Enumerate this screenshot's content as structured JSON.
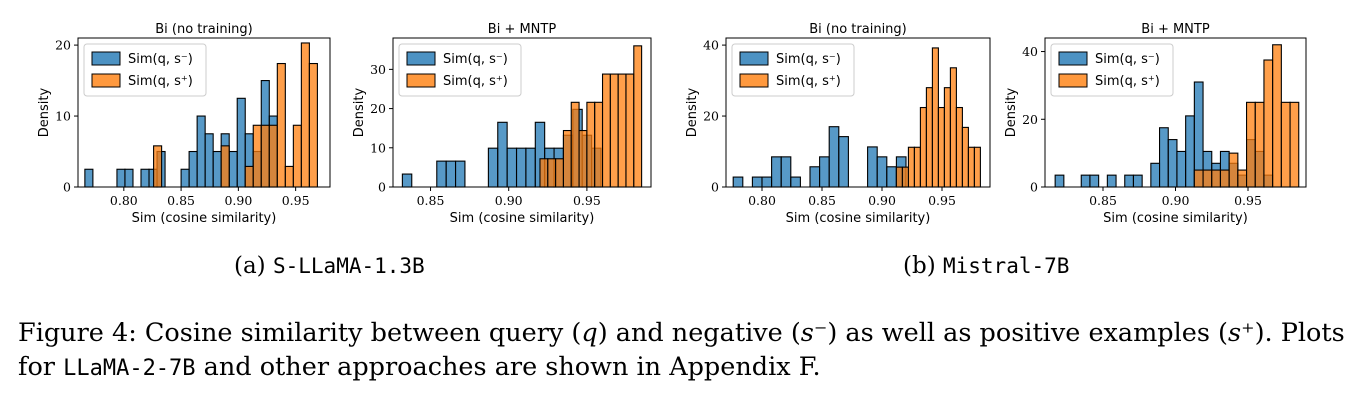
{
  "colors": {
    "neg": "#1f77b4",
    "pos": "#ff7f0e"
  },
  "legend": {
    "neg": "Sim(q, s⁻)",
    "pos": "Sim(q, s⁺)"
  },
  "chart_data": [
    {
      "type": "bar",
      "title": "Bi (no training)",
      "xlabel": "Sim (cosine similarity)",
      "ylabel": "Density",
      "xlim": [
        0.76,
        0.98
      ],
      "ylim": [
        0,
        21
      ],
      "xticks": [
        "0.80",
        "0.85",
        "0.90",
        "0.95"
      ],
      "yticks": [
        "0",
        "10",
        "20"
      ],
      "legend_position": "top-left",
      "series": [
        {
          "name": "Sim(q, s⁻)",
          "bins": [
            [
              0.766,
              0.773,
              2.5
            ],
            [
              0.794,
              0.801,
              2.5
            ],
            [
              0.801,
              0.808,
              2.5
            ],
            [
              0.815,
              0.822,
              2.5
            ],
            [
              0.822,
              0.829,
              2.5
            ],
            [
              0.829,
              0.836,
              5.0
            ],
            [
              0.85,
              0.857,
              2.5
            ],
            [
              0.857,
              0.864,
              5.0
            ],
            [
              0.864,
              0.871,
              10.0
            ],
            [
              0.871,
              0.878,
              7.5
            ],
            [
              0.878,
              0.885,
              5.0
            ],
            [
              0.885,
              0.892,
              7.5
            ],
            [
              0.892,
              0.899,
              5.0
            ],
            [
              0.899,
              0.906,
              12.5
            ],
            [
              0.906,
              0.913,
              7.5
            ],
            [
              0.913,
              0.92,
              5.0
            ],
            [
              0.92,
              0.927,
              15.0
            ],
            [
              0.927,
              0.934,
              10.0
            ]
          ]
        },
        {
          "name": "Sim(q, s⁺)",
          "bins": [
            [
              0.826,
              0.833,
              5.8
            ],
            [
              0.885,
              0.892,
              5.8
            ],
            [
              0.906,
              0.913,
              2.9
            ],
            [
              0.913,
              0.92,
              8.7
            ],
            [
              0.92,
              0.927,
              8.7
            ],
            [
              0.927,
              0.934,
              8.7
            ],
            [
              0.934,
              0.941,
              17.4
            ],
            [
              0.941,
              0.948,
              2.9
            ],
            [
              0.948,
              0.955,
              8.7
            ],
            [
              0.955,
              0.962,
              20.3
            ],
            [
              0.962,
              0.969,
              17.4
            ]
          ]
        }
      ]
    },
    {
      "type": "bar",
      "title": "Bi + MNTP",
      "xlabel": "Sim (cosine similarity)",
      "ylabel": "Density",
      "xlim": [
        0.826,
        0.991
      ],
      "ylim": [
        0,
        38
      ],
      "xticks": [
        "0.85",
        "0.90",
        "0.95"
      ],
      "yticks": [
        "0",
        "10",
        "20",
        "30"
      ],
      "legend_position": "top-left",
      "series": [
        {
          "name": "Sim(q, s⁻)",
          "bins": [
            [
              0.832,
              0.838,
              3.3
            ],
            [
              0.854,
              0.86,
              6.6
            ],
            [
              0.86,
              0.866,
              6.6
            ],
            [
              0.866,
              0.872,
              6.6
            ],
            [
              0.887,
              0.893,
              9.9
            ],
            [
              0.893,
              0.899,
              16.5
            ],
            [
              0.899,
              0.905,
              9.9
            ],
            [
              0.905,
              0.911,
              9.9
            ],
            [
              0.911,
              0.917,
              9.9
            ],
            [
              0.917,
              0.923,
              16.5
            ],
            [
              0.923,
              0.929,
              9.9
            ],
            [
              0.929,
              0.935,
              9.9
            ],
            [
              0.935,
              0.941,
              13.2
            ],
            [
              0.941,
              0.947,
              19.8
            ],
            [
              0.947,
              0.953,
              13.2
            ],
            [
              0.953,
              0.959,
              9.9
            ]
          ]
        },
        {
          "name": "Sim(q, s⁺)",
          "bins": [
            [
              0.92,
              0.925,
              7.2
            ],
            [
              0.925,
              0.93,
              7.2
            ],
            [
              0.93,
              0.935,
              7.2
            ],
            [
              0.935,
              0.94,
              14.4
            ],
            [
              0.94,
              0.945,
              21.6
            ],
            [
              0.945,
              0.95,
              14.4
            ],
            [
              0.95,
              0.955,
              21.6
            ],
            [
              0.955,
              0.96,
              21.6
            ],
            [
              0.96,
              0.965,
              28.8
            ],
            [
              0.965,
              0.97,
              28.8
            ],
            [
              0.97,
              0.975,
              28.8
            ],
            [
              0.975,
              0.98,
              28.8
            ],
            [
              0.98,
              0.985,
              36.0
            ]
          ]
        }
      ]
    },
    {
      "type": "bar",
      "title": "Bi (no training)",
      "xlabel": "Sim (cosine similarity)",
      "ylabel": "Density",
      "xlim": [
        0.77,
        0.99
      ],
      "ylim": [
        0,
        42
      ],
      "xticks": [
        "0.80",
        "0.85",
        "0.90",
        "0.95"
      ],
      "yticks": [
        "0",
        "20",
        "40"
      ],
      "legend_position": "top-left",
      "series": [
        {
          "name": "Sim(q, s⁻)",
          "bins": [
            [
              0.776,
              0.784,
              2.8
            ],
            [
              0.792,
              0.8,
              2.8
            ],
            [
              0.8,
              0.808,
              2.8
            ],
            [
              0.808,
              0.816,
              8.5
            ],
            [
              0.816,
              0.824,
              8.5
            ],
            [
              0.824,
              0.832,
              2.8
            ],
            [
              0.84,
              0.848,
              5.7
            ],
            [
              0.848,
              0.856,
              8.5
            ],
            [
              0.856,
              0.864,
              17.0
            ],
            [
              0.864,
              0.872,
              14.2
            ],
            [
              0.888,
              0.896,
              11.3
            ],
            [
              0.896,
              0.904,
              8.5
            ],
            [
              0.904,
              0.912,
              5.7
            ],
            [
              0.912,
              0.92,
              8.5
            ]
          ]
        },
        {
          "name": "Sim(q, s⁺)",
          "bins": [
            [
              0.912,
              0.917,
              5.6
            ],
            [
              0.917,
              0.922,
              5.6
            ],
            [
              0.922,
              0.927,
              11.2
            ],
            [
              0.927,
              0.932,
              11.2
            ],
            [
              0.932,
              0.937,
              22.4
            ],
            [
              0.937,
              0.942,
              28.0
            ],
            [
              0.942,
              0.947,
              39.2
            ],
            [
              0.947,
              0.952,
              22.4
            ],
            [
              0.952,
              0.957,
              28.0
            ],
            [
              0.957,
              0.962,
              33.6
            ],
            [
              0.962,
              0.967,
              22.4
            ],
            [
              0.967,
              0.972,
              16.8
            ],
            [
              0.972,
              0.977,
              11.2
            ],
            [
              0.977,
              0.982,
              11.2
            ]
          ]
        }
      ]
    },
    {
      "type": "bar",
      "title": "Bi + MNTP",
      "xlabel": "Sim (cosine similarity)",
      "ylabel": "Density",
      "xlim": [
        0.81,
        0.99
      ],
      "ylim": [
        0,
        44
      ],
      "xticks": [
        "0.85",
        "0.90",
        "0.95"
      ],
      "yticks": [
        "0",
        "20",
        "40"
      ],
      "legend_position": "top-left",
      "series": [
        {
          "name": "Sim(q, s⁻)",
          "bins": [
            [
              0.817,
              0.823,
              3.5
            ],
            [
              0.835,
              0.841,
              3.5
            ],
            [
              0.841,
              0.847,
              3.5
            ],
            [
              0.853,
              0.859,
              3.5
            ],
            [
              0.865,
              0.871,
              3.5
            ],
            [
              0.871,
              0.877,
              3.5
            ],
            [
              0.883,
              0.889,
              7.0
            ],
            [
              0.889,
              0.895,
              17.5
            ],
            [
              0.895,
              0.901,
              14.0
            ],
            [
              0.901,
              0.907,
              10.5
            ],
            [
              0.907,
              0.913,
              21.0
            ],
            [
              0.913,
              0.919,
              31.0
            ],
            [
              0.919,
              0.925,
              10.5
            ],
            [
              0.925,
              0.931,
              7.0
            ],
            [
              0.931,
              0.937,
              10.5
            ],
            [
              0.937,
              0.943,
              7.0
            ],
            [
              0.943,
              0.949,
              3.5
            ],
            [
              0.949,
              0.955,
              14.0
            ],
            [
              0.955,
              0.961,
              10.5
            ],
            [
              0.961,
              0.967,
              3.5
            ]
          ]
        },
        {
          "name": "Sim(q, s⁺)",
          "bins": [
            [
              0.913,
              0.919,
              5.0
            ],
            [
              0.919,
              0.925,
              5.0
            ],
            [
              0.925,
              0.931,
              5.0
            ],
            [
              0.931,
              0.937,
              5.0
            ],
            [
              0.937,
              0.943,
              10.0
            ],
            [
              0.943,
              0.949,
              5.0
            ],
            [
              0.949,
              0.955,
              25.0
            ],
            [
              0.955,
              0.961,
              25.0
            ],
            [
              0.961,
              0.967,
              37.5
            ],
            [
              0.967,
              0.973,
              42.0
            ],
            [
              0.973,
              0.979,
              25.0
            ],
            [
              0.979,
              0.985,
              25.0
            ]
          ]
        }
      ]
    }
  ],
  "subcaptions": [
    {
      "prefix": "(a) ",
      "code": "S-LLaMA-1.3B"
    },
    {
      "prefix": "(b) ",
      "code": "Mistral-7B"
    }
  ],
  "figure_caption": {
    "part1": "Figure 4: Cosine similarity between query (",
    "q": "q",
    "part2": ") and negative (",
    "sneg": "s⁻",
    "part3": ") as well as positive examples (",
    "spos": "s⁺",
    "part4": "). Plots for ",
    "code": "LLaMA-2-7B",
    "part5": " and other approaches are shown in Appendix F."
  }
}
